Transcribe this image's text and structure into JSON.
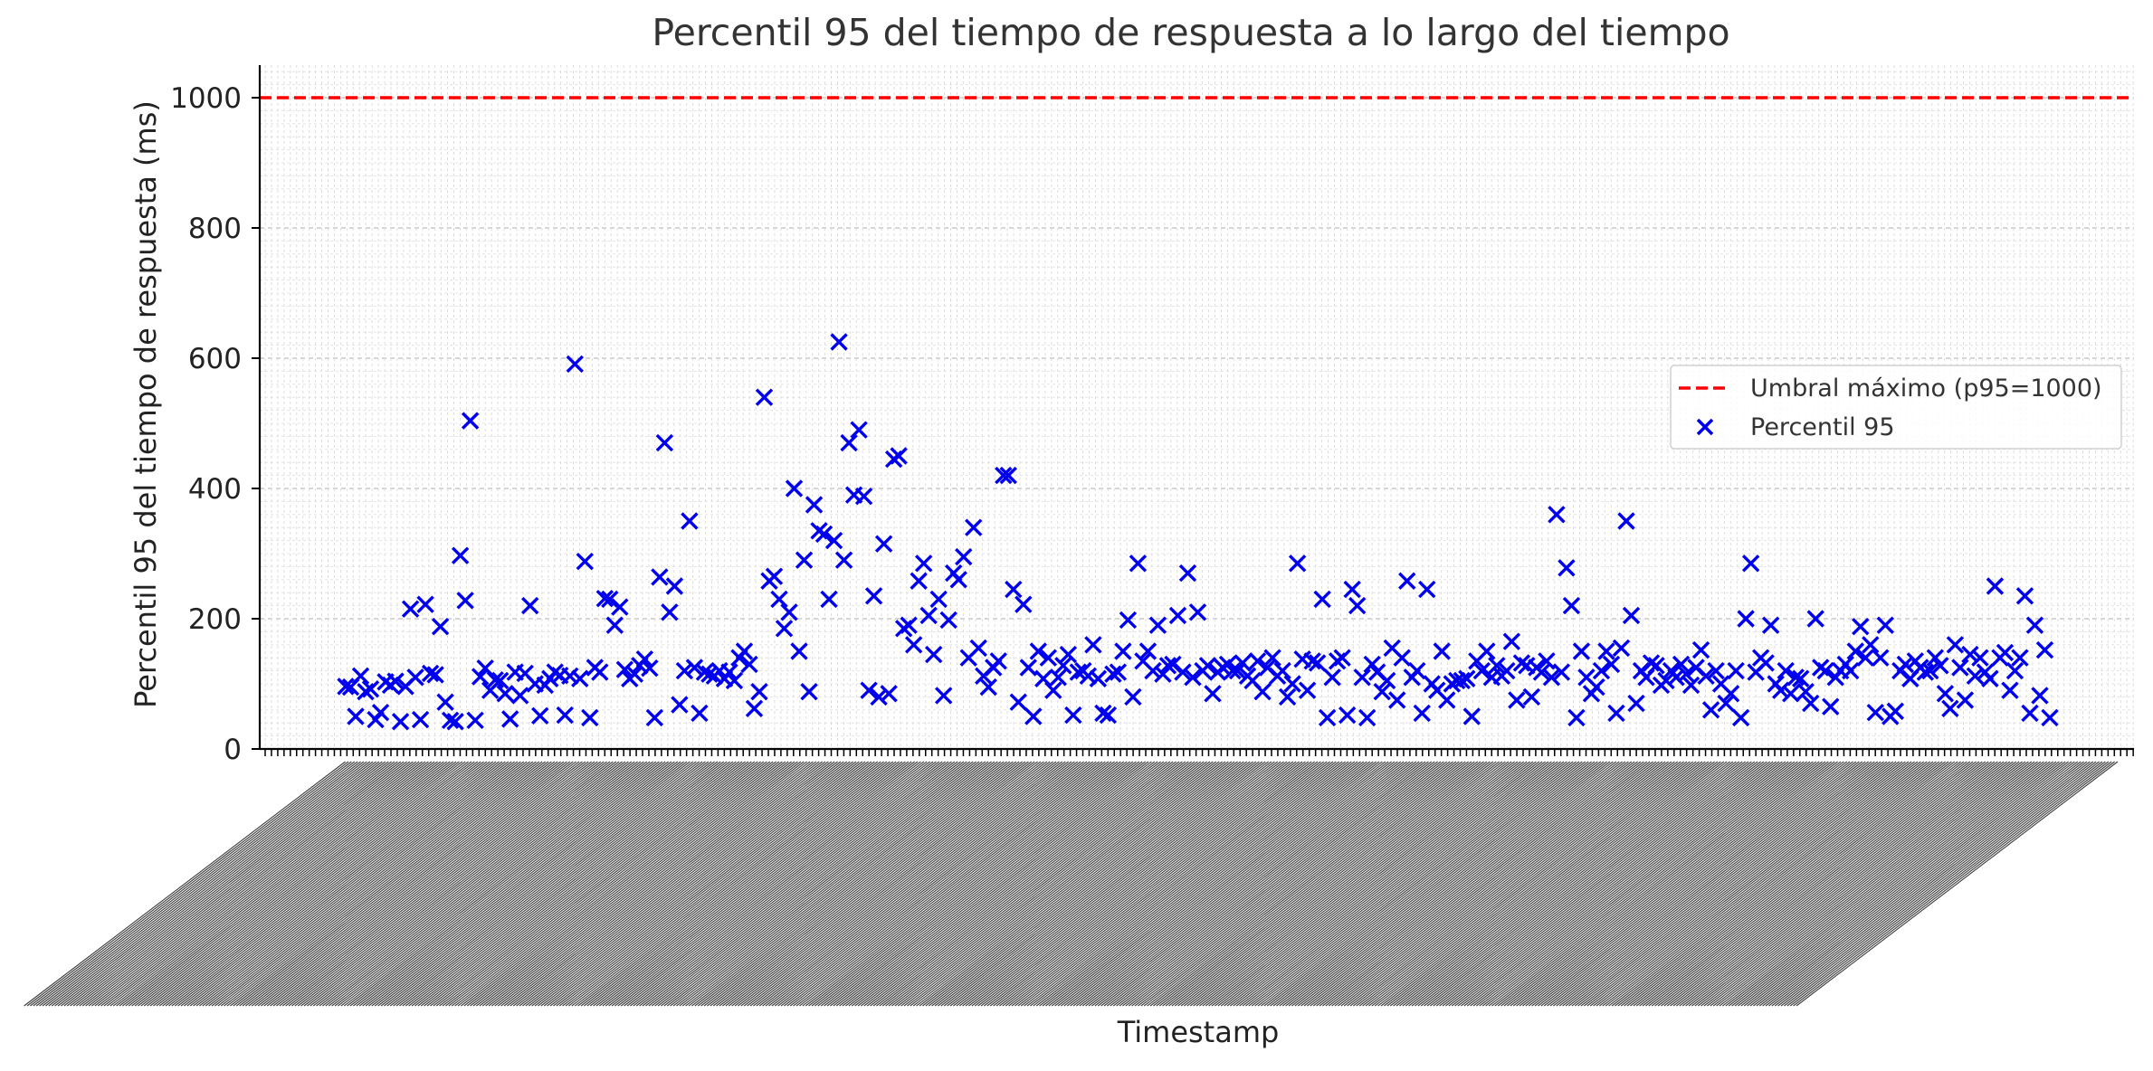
{
  "chart_data": {
    "type": "scatter",
    "title": "Percentil 95 del tiempo de respuesta a lo largo del tiempo",
    "xlabel": "Timestamp",
    "ylabel": "Percentil 95 del tiempo de respuesta (ms)",
    "ylim": [
      0,
      1050
    ],
    "yticks": [
      0,
      200,
      400,
      600,
      800,
      1000
    ],
    "grid": true,
    "legend_placement": "center-right",
    "legend": [
      "Umbral máximo (p95=1000)",
      "Percentil 95"
    ],
    "threshold": {
      "name": "Umbral máximo (p95=1000)",
      "value": 1000,
      "color": "#ff0000",
      "style": "dashed"
    },
    "series": [
      {
        "name": "Percentil 95",
        "marker": "x",
        "color": "#0000ee",
        "y": [
          96,
          95,
          50,
          112,
          88,
          92,
          45,
          56,
          103,
          98,
          104,
          42,
          96,
          215,
          110,
          45,
          222,
          116,
          114,
          188,
          72,
          44,
          42,
          297,
          228,
          504,
          44,
          111,
          124,
          90,
          106,
          105,
          85,
          46,
          118,
          82,
          116,
          220,
          100,
          51,
          98,
          108,
          118,
          113,
          52,
          112,
          591,
          108,
          288,
          48,
          125,
          118,
          231,
          230,
          190,
          218,
          122,
          108,
          115,
          128,
          138,
          124,
          48,
          264,
          470,
          210,
          250,
          68,
          120,
          350,
          125,
          55
        ]
      },
      {
        "name": "Percentil 95",
        "marker": "x",
        "color": "#0000ee",
        "y": [
          118,
          115,
          112,
          120,
          108,
          118,
          105,
          140,
          150,
          130,
          62,
          88,
          540,
          258,
          265,
          230,
          185,
          210,
          400,
          150,
          290,
          88,
          375,
          335,
          330,
          230,
          320,
          625,
          290,
          470,
          390,
          490,
          388,
          90,
          235,
          80,
          315,
          85,
          445,
          450,
          185,
          190,
          160,
          258,
          285,
          205,
          145,
          230,
          82,
          198,
          270,
          260,
          295,
          140,
          340,
          155,
          112,
          95,
          125,
          135,
          420,
          420,
          245,
          72,
          222,
          125,
          50,
          150,
          108,
          140,
          90,
          110,
          128,
          145,
          52,
          118,
          120,
          112,
          160,
          108,
          55,
          52,
          115,
          118,
          150,
          198,
          80,
          285,
          135,
          150,
          120,
          190,
          115,
          128,
          130,
          205,
          118,
          270,
          110,
          210,
          120,
          128,
          85,
          118,
          125,
          130,
          120,
          120
        ]
      },
      {
        "name": "Percentil 95",
        "marker": "x",
        "color": "#0000ee",
        "y": [
          132,
          112,
          105,
          135,
          88,
          125,
          140,
          112,
          120,
          80,
          100,
          285,
          138,
          90,
          135,
          132,
          230,
          48,
          110,
          135,
          140,
          52,
          245,
          220,
          110,
          48,
          130,
          118,
          88,
          105,
          155,
          75,
          140,
          258,
          110,
          120,
          55,
          245,
          100,
          90,
          150,
          75,
          100,
          105,
          105,
          108,
          50,
          135,
          120,
          150,
          110,
          128,
          112,
          120,
          165,
          75,
          132,
          128,
          80,
          125,
          118,
          135,
          110,
          360,
          118,
          278,
          220,
          48,
          150,
          110,
          85,
          95,
          120,
          150,
          130,
          55,
          155,
          350,
          205,
          70,
          120,
          110,
          132,
          128,
          98,
          105,
          120,
          110,
          130,
          115,
          98,
          125,
          152,
          112,
          60,
          120,
          100,
          70,
          85,
          120,
          48,
          200,
          285,
          118,
          140,
          132,
          190,
          100,
          90,
          120,
          85,
          110,
          108,
          88,
          70,
          200,
          125,
          120,
          65,
          110,
          120,
          130,
          120,
          150,
          188,
          140,
          160,
          56,
          140,
          190,
          50,
          58,
          120,
          130,
          108,
          135,
          125,
          118,
          120,
          140,
          128,
          85,
          62,
          160,
          125,
          75,
          145,
          112,
          140,
          118,
          108,
          250,
          140,
          148,
          90,
          120,
          140,
          235,
          55,
          190,
          82,
          152,
          48
        ]
      }
    ]
  }
}
